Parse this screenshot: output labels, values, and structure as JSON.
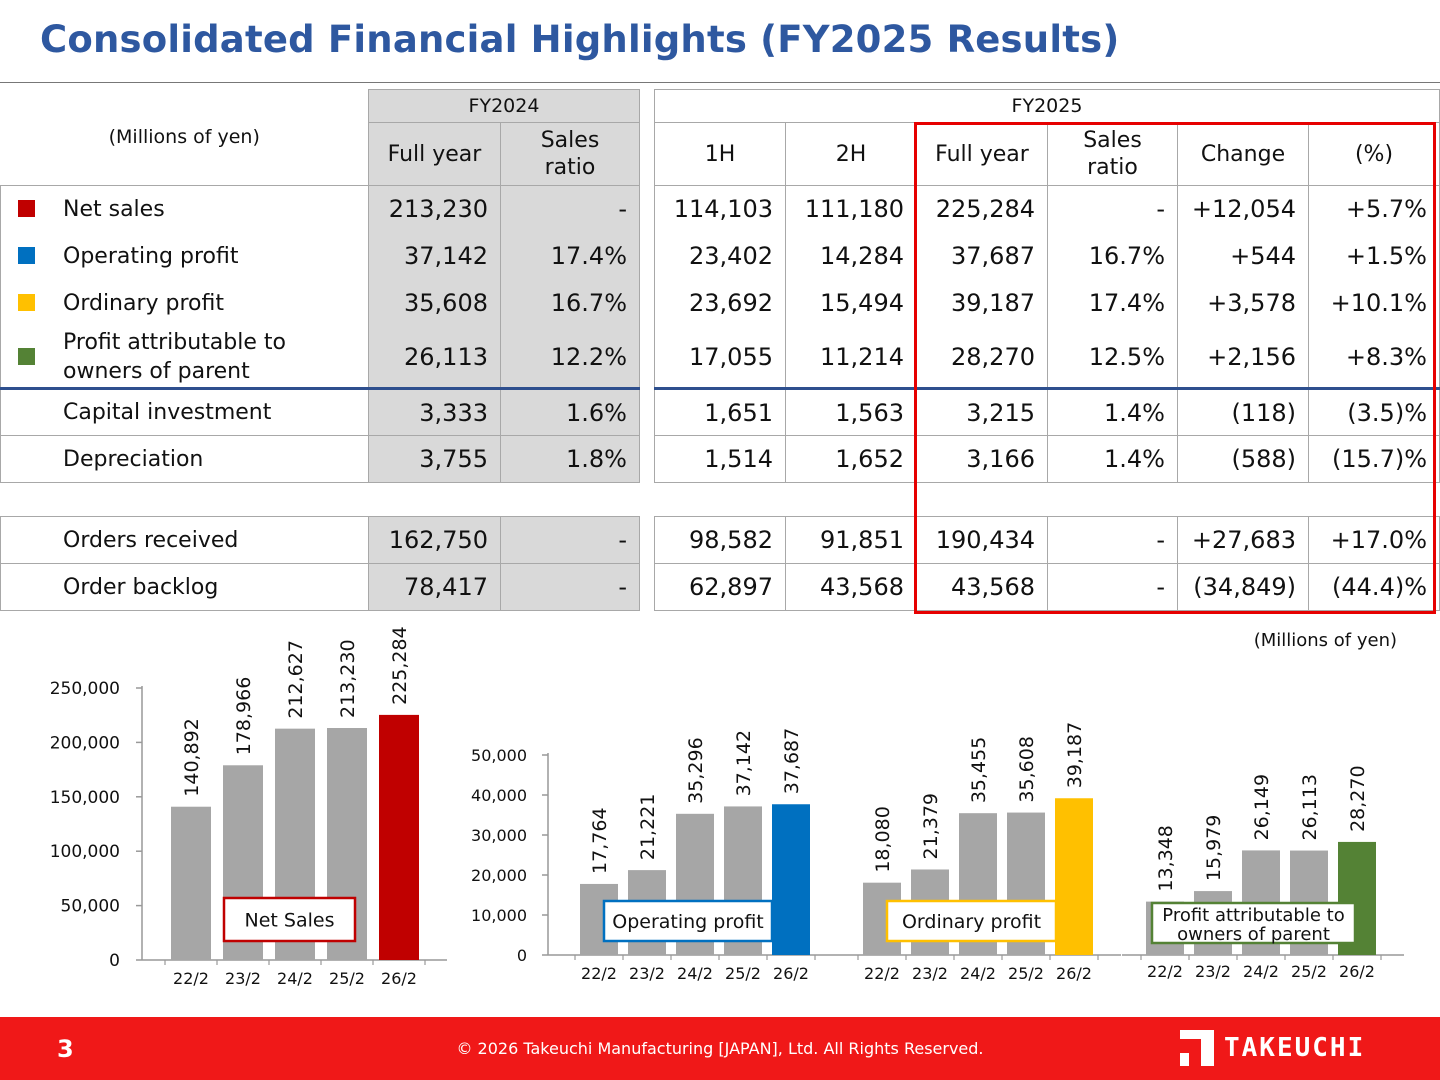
{
  "title": "Consolidated Financial Highlights (FY2025 Results)",
  "table": {
    "unit_label": "(Millions of yen)",
    "fy2024_label": "FY2024",
    "fy2025_label": "FY2025",
    "cols": {
      "full_year": "Full year",
      "sales_ratio_1": "Sales",
      "sales_ratio_2": "ratio",
      "h1": "1H",
      "h2": "2H",
      "change": "Change",
      "pct": "(%)"
    },
    "rows": [
      {
        "label": "Net sales",
        "label2": "",
        "color": "#c00000",
        "fy24_full": "213,230",
        "fy24_ratio": "-",
        "h1": "114,103",
        "h2": "111,180",
        "full": "225,284",
        "ratio": "-",
        "change": "+12,054",
        "pct": "+5.7%"
      },
      {
        "label": "Operating profit",
        "label2": "",
        "color": "#0070c0",
        "fy24_full": "37,142",
        "fy24_ratio": "17.4%",
        "h1": "23,402",
        "h2": "14,284",
        "full": "37,687",
        "ratio": "16.7%",
        "change": "+544",
        "pct": "+1.5%"
      },
      {
        "label": "Ordinary profit",
        "label2": "",
        "color": "#ffc000",
        "fy24_full": "35,608",
        "fy24_ratio": "16.7%",
        "h1": "23,692",
        "h2": "15,494",
        "full": "39,187",
        "ratio": "17.4%",
        "change": "+3,578",
        "pct": "+10.1%"
      },
      {
        "label": "Profit attributable to",
        "label2": "owners of parent",
        "color": "#548235",
        "fy24_full": "26,113",
        "fy24_ratio": "12.2%",
        "h1": "17,055",
        "h2": "11,214",
        "full": "28,270",
        "ratio": "12.5%",
        "change": "+2,156",
        "pct": "+8.3%"
      },
      {
        "label": "Capital investment",
        "label2": "",
        "fy24_full": "3,333",
        "fy24_ratio": "1.6%",
        "h1": "1,651",
        "h2": "1,563",
        "full": "3,215",
        "ratio": "1.4%",
        "change": "(118)",
        "pct": "(3.5)%"
      },
      {
        "label": "Depreciation",
        "label2": "",
        "fy24_full": "3,755",
        "fy24_ratio": "1.8%",
        "h1": "1,514",
        "h2": "1,652",
        "full": "3,166",
        "ratio": "1.4%",
        "change": "(588)",
        "pct": "(15.7)%"
      },
      {
        "label": "Orders received",
        "label2": "",
        "fy24_full": "162,750",
        "fy24_ratio": "-",
        "h1": "98,582",
        "h2": "91,851",
        "full": "190,434",
        "ratio": "-",
        "change": "+27,683",
        "pct": "+17.0%"
      },
      {
        "label": "Order backlog",
        "label2": "",
        "fy24_full": "78,417",
        "fy24_ratio": "-",
        "h1": "62,897",
        "h2": "43,568",
        "full": "43,568",
        "ratio": "-",
        "change": "(34,849)",
        "pct": "(44.4)%"
      }
    ]
  },
  "chart_unit": "(Millions of yen)",
  "chart_data": [
    {
      "type": "bar",
      "title": "Net Sales",
      "categories": [
        "22/2",
        "23/2",
        "24/2",
        "25/2",
        "26/2"
      ],
      "values": [
        140892,
        178966,
        212627,
        213230,
        225284
      ],
      "value_labels": [
        "140,892",
        "178,966",
        "212,627",
        "213,230",
        "225,284"
      ],
      "yticks": [
        "0",
        "50,000",
        "100,000",
        "150,000",
        "200,000",
        "250,000"
      ],
      "ylim": [
        0,
        250000
      ],
      "bar_color": "#a6a6a6",
      "highlight_color": "#c00000",
      "box_color": "#c00000"
    },
    {
      "type": "bar",
      "title": "Operating profit",
      "categories": [
        "22/2",
        "23/2",
        "24/2",
        "25/2",
        "26/2"
      ],
      "values": [
        17764,
        21221,
        35296,
        37142,
        37687
      ],
      "value_labels": [
        "17,764",
        "21,221",
        "35,296",
        "37,142",
        "37,687"
      ],
      "yticks": [
        "0",
        "10,000",
        "20,000",
        "30,000",
        "40,000",
        "50,000"
      ],
      "ylim": [
        0,
        50000
      ],
      "bar_color": "#a6a6a6",
      "highlight_color": "#0070c0",
      "box_color": "#0070c0"
    },
    {
      "type": "bar",
      "title": "Ordinary profit",
      "categories": [
        "22/2",
        "23/2",
        "24/2",
        "25/2",
        "26/2"
      ],
      "values": [
        18080,
        21379,
        35455,
        35608,
        39187
      ],
      "value_labels": [
        "18,080",
        "21,379",
        "35,455",
        "35,608",
        "39,187"
      ],
      "ylim": [
        0,
        50000
      ],
      "bar_color": "#a6a6a6",
      "highlight_color": "#ffc000",
      "box_color": "#ffc000"
    },
    {
      "type": "bar",
      "title": "Profit attributable to",
      "title2": "owners of parent",
      "categories": [
        "22/2",
        "23/2",
        "24/2",
        "25/2",
        "26/2"
      ],
      "values": [
        13348,
        15979,
        26149,
        26113,
        28270
      ],
      "value_labels": [
        "13,348",
        "15,979",
        "26,149",
        "26,113",
        "28,270"
      ],
      "ylim": [
        0,
        50000
      ],
      "bar_color": "#a6a6a6",
      "highlight_color": "#548235",
      "box_color": "#548235"
    }
  ],
  "footer": {
    "page": "3",
    "copyright": "© 2026 Takeuchi Manufacturing [JAPAN], Ltd. All Rights Reserved.",
    "logo_text": "TAKEUCHI"
  }
}
